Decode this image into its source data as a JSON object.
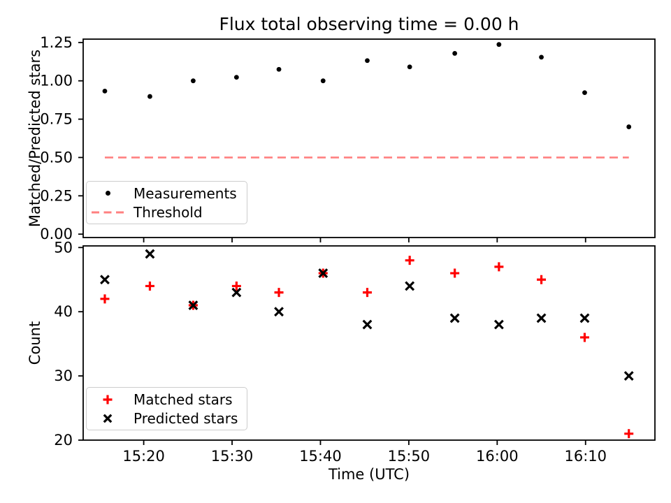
{
  "title": "Flux total observing time = 0.00 h",
  "colors": {
    "measurements": "#000000",
    "threshold": "#ff8080",
    "matched_stars": "#ff0000",
    "predicted_stars": "#000000",
    "axis": "#000000",
    "legend_border": "#cccccc",
    "background": "#ffffff"
  },
  "chart_data": [
    {
      "type": "scatter",
      "panel": "top",
      "title": "Flux total observing time = 0.00 h",
      "xlabel": "",
      "ylabel": "Matched/Predicted stars",
      "grid": false,
      "ylim": [
        -0.022,
        1.272
      ],
      "yticks": [
        0,
        0.25,
        0.5,
        0.75,
        1.0,
        1.25
      ],
      "ytick_labels": [
        "0.00",
        "0.25",
        "0.50",
        "0.75",
        "1.00",
        "1.25"
      ],
      "xlim_minutes_after_15_00": [
        13.15,
        77.85
      ],
      "xticks_minutes": [
        20,
        30,
        40,
        50,
        60,
        70
      ],
      "xtick_labels": [
        "",
        "",
        "",
        "",
        "",
        ""
      ],
      "x_minutes_after_15_00": [
        15.6,
        20.7,
        25.6,
        30.5,
        35.3,
        40.3,
        45.3,
        50.1,
        55.2,
        60.2,
        65.0,
        69.9,
        74.9
      ],
      "series": [
        {
          "name": "Measurements",
          "marker": "dot",
          "color": "#000000",
          "values": [
            0.933,
            0.898,
            1.0,
            1.023,
            1.075,
            1.0,
            1.132,
            1.091,
            1.179,
            1.237,
            1.154,
            0.923,
            0.7
          ]
        },
        {
          "name": "Threshold",
          "style": "dashed-hline",
          "color": "#ff8080",
          "value": 0.5,
          "x_span_minutes": [
            15.6,
            74.9
          ]
        }
      ],
      "legend_position": "lower left"
    },
    {
      "type": "scatter",
      "panel": "bottom",
      "xlabel": "Time (UTC)",
      "ylabel": "Count",
      "grid": false,
      "ylim": [
        20,
        50.25
      ],
      "yticks": [
        20,
        30,
        40,
        50
      ],
      "ytick_labels": [
        "20",
        "30",
        "40",
        "50"
      ],
      "xlim_minutes_after_15_00": [
        13.15,
        77.85
      ],
      "xticks_minutes": [
        20,
        30,
        40,
        50,
        60,
        70
      ],
      "xtick_labels": [
        "15:20",
        "15:30",
        "15:40",
        "15:50",
        "16:00",
        "16:10"
      ],
      "x_minutes_after_15_00": [
        15.6,
        20.7,
        25.6,
        30.5,
        35.3,
        40.3,
        45.3,
        50.1,
        55.2,
        60.2,
        65.0,
        69.9,
        74.9
      ],
      "series": [
        {
          "name": "Matched stars",
          "marker": "plus",
          "color": "#ff0000",
          "values": [
            42,
            44,
            41,
            44,
            43,
            46,
            43,
            48,
            46,
            47,
            45,
            36,
            21
          ]
        },
        {
          "name": "Predicted stars",
          "marker": "x",
          "color": "#000000",
          "values": [
            45,
            49,
            41,
            43,
            40,
            46,
            38,
            44,
            39,
            38,
            39,
            39,
            30
          ]
        }
      ],
      "legend_position": "lower left"
    }
  ]
}
